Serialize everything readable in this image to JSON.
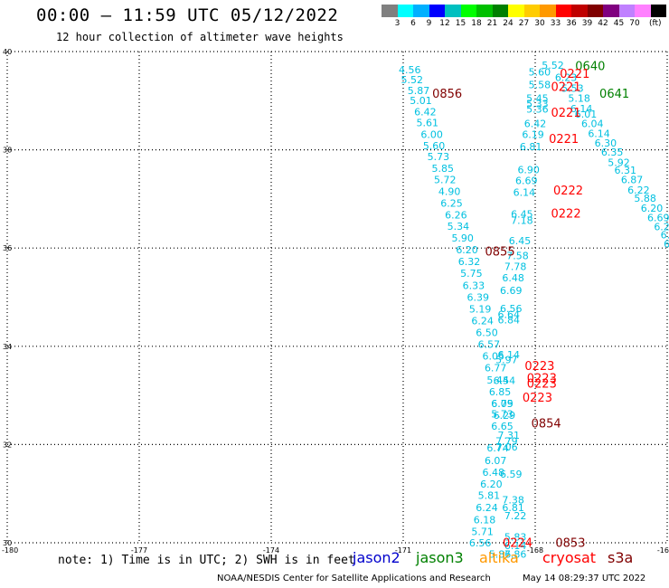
{
  "header": {
    "title": "00:00 – 11:59 UTC 05/12/2022",
    "subtitle": "12 hour collection of altimeter wave heights"
  },
  "colorbar": {
    "colors": [
      "#808080",
      "#00ffff",
      "#00b0ff",
      "#0000ff",
      "#00c0c0",
      "#00ff00",
      "#00c000",
      "#008000",
      "#ffff00",
      "#ffcc00",
      "#ff9900",
      "#ff0000",
      "#c00000",
      "#800000",
      "#800080",
      "#c080ff",
      "#ff80ff",
      "#000000"
    ],
    "labels": [
      "3",
      "6",
      "9",
      "12",
      "15",
      "18",
      "21",
      "24",
      "27",
      "30",
      "33",
      "36",
      "39",
      "42",
      "45",
      "70"
    ],
    "unit": "(ft)"
  },
  "map": {
    "lon_range": [
      -180,
      -165
    ],
    "lat_range": [
      30,
      40
    ],
    "x_ticks": [
      "-180",
      "-177",
      "-174",
      "-171",
      "-168",
      "-16"
    ],
    "y_ticks": [
      "40",
      "38",
      "36",
      "34",
      "32",
      "30"
    ]
  },
  "wave_labels": [
    {
      "t": "4.56",
      "lon": -170.85,
      "lat": 39.56
    },
    {
      "t": "5.52",
      "lon": -170.8,
      "lat": 39.36
    },
    {
      "t": "5.87",
      "lon": -170.65,
      "lat": 39.13
    },
    {
      "t": "5.01",
      "lon": -170.6,
      "lat": 38.93
    },
    {
      "t": "6.42",
      "lon": -170.5,
      "lat": 38.7
    },
    {
      "t": "5.61",
      "lon": -170.45,
      "lat": 38.48
    },
    {
      "t": "6.00",
      "lon": -170.35,
      "lat": 38.24
    },
    {
      "t": "5.60",
      "lon": -170.3,
      "lat": 38.01
    },
    {
      "t": "5.73",
      "lon": -170.2,
      "lat": 37.79
    },
    {
      "t": "5.85",
      "lon": -170.1,
      "lat": 37.55
    },
    {
      "t": "5.72",
      "lon": -170.05,
      "lat": 37.32
    },
    {
      "t": "4.90",
      "lon": -169.95,
      "lat": 37.08
    },
    {
      "t": "6.25",
      "lon": -169.9,
      "lat": 36.84
    },
    {
      "t": "6.26",
      "lon": -169.8,
      "lat": 36.6
    },
    {
      "t": "5.34",
      "lon": -169.75,
      "lat": 36.37
    },
    {
      "t": "5.90",
      "lon": -169.65,
      "lat": 36.13
    },
    {
      "t": "6.20",
      "lon": -169.55,
      "lat": 35.89
    },
    {
      "t": "6.32",
      "lon": -169.5,
      "lat": 35.65
    },
    {
      "t": "5.75",
      "lon": -169.45,
      "lat": 35.41
    },
    {
      "t": "6.33",
      "lon": -169.4,
      "lat": 35.17
    },
    {
      "t": "6.39",
      "lon": -169.3,
      "lat": 34.93
    },
    {
      "t": "5.19",
      "lon": -169.25,
      "lat": 34.69
    },
    {
      "t": "6.24",
      "lon": -169.2,
      "lat": 34.45
    },
    {
      "t": "6.50",
      "lon": -169.1,
      "lat": 34.21
    },
    {
      "t": "6.57",
      "lon": -169.05,
      "lat": 33.97
    },
    {
      "t": "6.05",
      "lon": -168.95,
      "lat": 33.73
    },
    {
      "t": "6.77",
      "lon": -168.9,
      "lat": 33.49
    },
    {
      "t": "5.44",
      "lon": -168.85,
      "lat": 33.24
    },
    {
      "t": "6.85",
      "lon": -168.8,
      "lat": 33.0
    },
    {
      "t": "6.09",
      "lon": -168.75,
      "lat": 32.76
    },
    {
      "t": "6.29",
      "lon": -168.7,
      "lat": 32.52
    },
    {
      "t": "7.31",
      "lon": -168.6,
      "lat": 32.12
    },
    {
      "t": "7.79",
      "lon": -168.65,
      "lat": 32.0
    },
    {
      "t": "7.06",
      "lon": -168.65,
      "lat": 31.88
    },
    {
      "t": "6.59",
      "lon": -168.55,
      "lat": 31.33
    },
    {
      "t": "7.38",
      "lon": -168.5,
      "lat": 30.8
    },
    {
      "t": "6.81",
      "lon": -168.5,
      "lat": 30.64
    },
    {
      "t": "7.22",
      "lon": -168.45,
      "lat": 30.48
    },
    {
      "t": "5.83",
      "lon": -168.45,
      "lat": 30.05
    },
    {
      "t": "6.14",
      "lon": -168.45,
      "lat": 29.87
    },
    {
      "t": "7.86",
      "lon": -168.45,
      "lat": 29.7
    },
    {
      "t": "5.52",
      "lon": -167.6,
      "lat": 39.65
    },
    {
      "t": "5.60",
      "lon": -167.9,
      "lat": 39.51
    },
    {
      "t": "5.58",
      "lon": -167.9,
      "lat": 39.25
    },
    {
      "t": "5.45",
      "lon": -167.95,
      "lat": 38.98
    },
    {
      "t": "5.33",
      "lon": -167.95,
      "lat": 38.87
    },
    {
      "t": "5.36",
      "lon": -167.95,
      "lat": 38.76
    },
    {
      "t": "6.42",
      "lon": -168.0,
      "lat": 38.46
    },
    {
      "t": "6.19",
      "lon": -168.05,
      "lat": 38.24
    },
    {
      "t": "6.81",
      "lon": -168.1,
      "lat": 37.99
    },
    {
      "t": "6.90",
      "lon": -168.15,
      "lat": 37.52
    },
    {
      "t": "6.69",
      "lon": -168.2,
      "lat": 37.3
    },
    {
      "t": "6.14",
      "lon": -168.25,
      "lat": 37.06
    },
    {
      "t": "6.45",
      "lon": -168.3,
      "lat": 36.62
    },
    {
      "t": "7.18",
      "lon": -168.3,
      "lat": 36.49
    },
    {
      "t": "6.45",
      "lon": -168.35,
      "lat": 36.08
    },
    {
      "t": "7.58",
      "lon": -168.4,
      "lat": 35.77
    },
    {
      "t": "7.78",
      "lon": -168.45,
      "lat": 35.55
    },
    {
      "t": "6.48",
      "lon": -168.5,
      "lat": 35.32
    },
    {
      "t": "6.69",
      "lon": -168.55,
      "lat": 35.06
    },
    {
      "t": "6.56",
      "lon": -168.55,
      "lat": 34.7
    },
    {
      "t": "6.64",
      "lon": -168.6,
      "lat": 34.58
    },
    {
      "t": "6.84",
      "lon": -168.6,
      "lat": 34.47
    },
    {
      "t": "6.14",
      "lon": -168.6,
      "lat": 33.76
    },
    {
      "t": "5.97",
      "lon": -168.65,
      "lat": 33.66
    },
    {
      "t": "6.54",
      "lon": -168.7,
      "lat": 33.23
    },
    {
      "t": "6.75",
      "lon": -168.75,
      "lat": 32.76
    },
    {
      "t": "5.73",
      "lon": -168.75,
      "lat": 32.55
    },
    {
      "t": "6.65",
      "lon": -168.75,
      "lat": 32.3
    },
    {
      "t": "6.74",
      "lon": -168.85,
      "lat": 31.86
    },
    {
      "t": "6.07",
      "lon": -168.9,
      "lat": 31.6
    },
    {
      "t": "6.48",
      "lon": -168.95,
      "lat": 31.36
    },
    {
      "t": "6.20",
      "lon": -169.0,
      "lat": 31.12
    },
    {
      "t": "5.81",
      "lon": -169.05,
      "lat": 30.89
    },
    {
      "t": "6.24",
      "lon": -169.1,
      "lat": 30.64
    },
    {
      "t": "6.18",
      "lon": -169.15,
      "lat": 30.4
    },
    {
      "t": "5.71",
      "lon": -169.2,
      "lat": 30.16
    },
    {
      "t": "6.56",
      "lon": -169.25,
      "lat": 29.93
    },
    {
      "t": "5.86",
      "lon": -168.8,
      "lat": 29.7
    },
    {
      "t": "6.23",
      "lon": -167.3,
      "lat": 39.4
    },
    {
      "t": "5.53",
      "lon": -167.15,
      "lat": 39.18
    },
    {
      "t": "5.18",
      "lon": -167.0,
      "lat": 38.98
    },
    {
      "t": "6.14",
      "lon": -166.95,
      "lat": 38.77
    },
    {
      "t": "6.01",
      "lon": -166.85,
      "lat": 38.66
    },
    {
      "t": "6.04",
      "lon": -166.7,
      "lat": 38.46
    },
    {
      "t": "6.14",
      "lon": -166.55,
      "lat": 38.26
    },
    {
      "t": "6.30",
      "lon": -166.4,
      "lat": 38.07
    },
    {
      "t": "6.35",
      "lon": -166.25,
      "lat": 37.88
    },
    {
      "t": "5.92",
      "lon": -166.1,
      "lat": 37.67
    },
    {
      "t": "6.31",
      "lon": -165.95,
      "lat": 37.51
    },
    {
      "t": "6.87",
      "lon": -165.8,
      "lat": 37.32
    },
    {
      "t": "6.22",
      "lon": -165.65,
      "lat": 37.11
    },
    {
      "t": "5.88",
      "lon": -165.5,
      "lat": 36.94
    },
    {
      "t": "6.20",
      "lon": -165.35,
      "lat": 36.74
    },
    {
      "t": "6.69",
      "lon": -165.2,
      "lat": 36.55
    },
    {
      "t": "6.27",
      "lon": -165.05,
      "lat": 36.36
    },
    {
      "t": "6.47",
      "lon": -164.9,
      "lat": 36.2
    },
    {
      "t": "6.7",
      "lon": -164.9,
      "lat": 36.01
    },
    {
      "t": "6",
      "lon": -164.8,
      "lat": 35.84
    }
  ],
  "time_labels": [
    {
      "t": "0640",
      "lon": -166.75,
      "lat": 39.62,
      "color": "#008000"
    },
    {
      "t": "0221",
      "lon": -167.1,
      "lat": 39.47,
      "color": "#ff0000"
    },
    {
      "t": "0221",
      "lon": -167.3,
      "lat": 39.2,
      "color": "#ff0000"
    },
    {
      "t": "0641",
      "lon": -166.2,
      "lat": 39.06,
      "color": "#008000"
    },
    {
      "t": "0856",
      "lon": -170.0,
      "lat": 39.06,
      "color": "#800000"
    },
    {
      "t": "0221",
      "lon": -167.3,
      "lat": 38.67,
      "color": "#ff0000"
    },
    {
      "t": "0221",
      "lon": -167.35,
      "lat": 38.14,
      "color": "#ff0000"
    },
    {
      "t": "0222",
      "lon": -167.25,
      "lat": 37.09,
      "color": "#ff0000"
    },
    {
      "t": "0222",
      "lon": -167.3,
      "lat": 36.62,
      "color": "#ff0000"
    },
    {
      "t": "0855",
      "lon": -168.8,
      "lat": 35.85,
      "color": "#800000"
    },
    {
      "t": "0223",
      "lon": -167.9,
      "lat": 33.52,
      "color": "#ff0000"
    },
    {
      "t": "0223",
      "lon": -167.85,
      "lat": 33.27,
      "color": "#ff0000"
    },
    {
      "t": "0223",
      "lon": -167.85,
      "lat": 33.16,
      "color": "#ff0000"
    },
    {
      "t": "0223",
      "lon": -167.95,
      "lat": 32.87,
      "color": "#ff0000"
    },
    {
      "t": "0854",
      "lon": -167.75,
      "lat": 32.35,
      "color": "#800000"
    },
    {
      "t": "0224",
      "lon": -168.4,
      "lat": 29.92,
      "color": "#ff0000"
    },
    {
      "t": "0853",
      "lon": -167.2,
      "lat": 29.92,
      "color": "#800000"
    }
  ],
  "footer": {
    "note": "note: 1) Time is in UTC; 2) SWH is in feet",
    "legend": [
      {
        "name": "jason2",
        "color": "#0000cc"
      },
      {
        "name": "jason3",
        "color": "#008000"
      },
      {
        "name": "altika",
        "color": "#ff9900"
      },
      {
        "name": "cryosat",
        "color": "#ff0000"
      },
      {
        "name": "s3a",
        "color": "#800000"
      }
    ],
    "credit": "NOAA/NESDIS Center for Satellite Applications and Research",
    "timestamp": "May 14 08:29:37 UTC 2022"
  },
  "wave_label_color": "#00c0e0"
}
